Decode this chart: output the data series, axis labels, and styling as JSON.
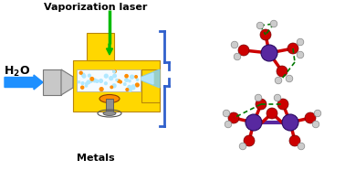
{
  "title": "Vaporization laser",
  "subtitle": "Metals",
  "bg_color": "#ffffff",
  "yellow": "#FFD700",
  "dark_yellow": "#B8860B",
  "gray": "#A0A0A0",
  "light_gray": "#C8C8C8",
  "mid_gray": "#909090",
  "blue_arrow": "#1E90FF",
  "green_laser": "#00BB00",
  "orange": "#FF8C00",
  "light_blue_jet": "#B0E8FF",
  "dark_blue": "#3060CC",
  "purple": "#5828A0",
  "red_bond": "#CC0000",
  "dark_green": "#007700",
  "h_gray": "#C0C0C0",
  "h_edge": "#888888"
}
